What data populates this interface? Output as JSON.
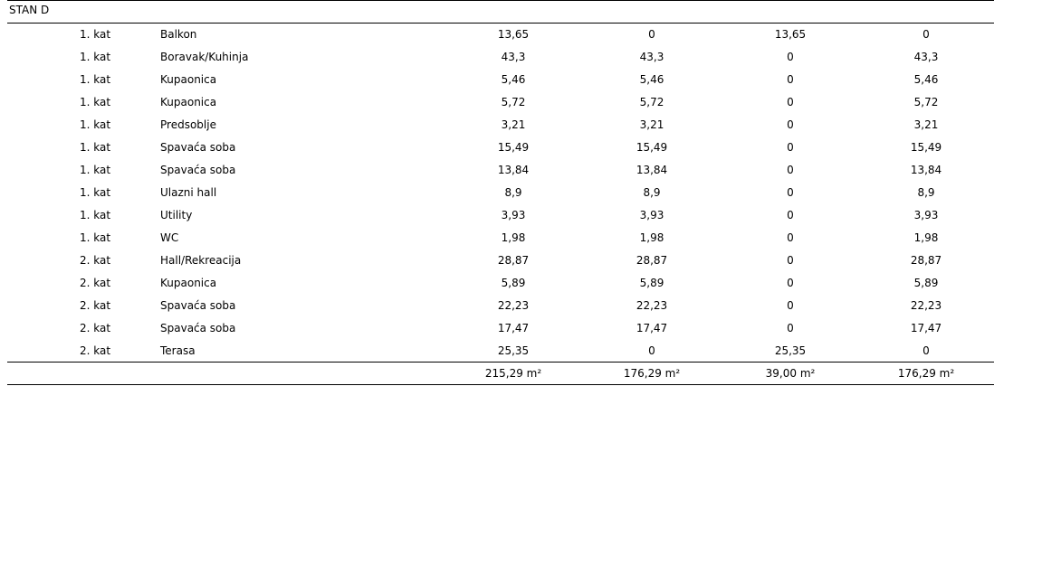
{
  "title": "STAN D",
  "table": {
    "rows": [
      [
        "1. kat",
        "Balkon",
        "13,65",
        "0",
        "13,65",
        "0"
      ],
      [
        "1. kat",
        "Boravak/Kuhinja",
        "43,3",
        "43,3",
        "0",
        "43,3"
      ],
      [
        "1. kat",
        "Kupaonica",
        "5,46",
        "5,46",
        "0",
        "5,46"
      ],
      [
        "1. kat",
        "Kupaonica",
        "5,72",
        "5,72",
        "0",
        "5,72"
      ],
      [
        "1. kat",
        "Predsoblje",
        "3,21",
        "3,21",
        "0",
        "3,21"
      ],
      [
        "1. kat",
        "Spavaća soba",
        "15,49",
        "15,49",
        "0",
        "15,49"
      ],
      [
        "1. kat",
        "Spavaća soba",
        "13,84",
        "13,84",
        "0",
        "13,84"
      ],
      [
        "1. kat",
        "Ulazni hall",
        "8,9",
        "8,9",
        "0",
        "8,9"
      ],
      [
        "1. kat",
        "Utility",
        "3,93",
        "3,93",
        "0",
        "3,93"
      ],
      [
        "1. kat",
        "WC",
        "1,98",
        "1,98",
        "0",
        "1,98"
      ],
      [
        "2. kat",
        "Hall/Rekreacija",
        "28,87",
        "28,87",
        "0",
        "28,87"
      ],
      [
        "2. kat",
        "Kupaonica",
        "5,89",
        "5,89",
        "0",
        "5,89"
      ],
      [
        "2. kat",
        "Spavaća soba",
        "22,23",
        "22,23",
        "0",
        "22,23"
      ],
      [
        "2. kat",
        "Spavaća soba",
        "17,47",
        "17,47",
        "0",
        "17,47"
      ],
      [
        "2. kat",
        "Terasa",
        "25,35",
        "0",
        "25,35",
        "0"
      ]
    ],
    "totals": [
      "215,29 m²",
      "176,29 m²",
      "39,00 m²",
      "176,29 m²"
    ]
  }
}
